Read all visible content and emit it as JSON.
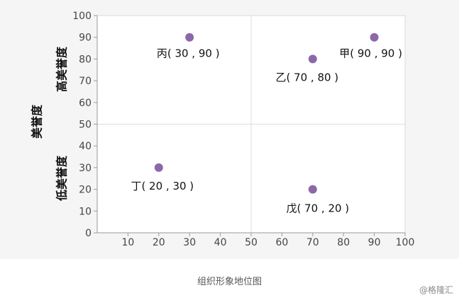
{
  "chart_data": {
    "type": "scatter",
    "title": "",
    "xlabel": "",
    "ylabel": "美誉度",
    "xlim": [
      0,
      100
    ],
    "ylim": [
      0,
      100
    ],
    "x_ticks": [
      "10",
      "20",
      "30",
      "40",
      "50",
      "60",
      "70",
      "80",
      "90",
      "100"
    ],
    "y_ticks": [
      "0",
      "10",
      "20",
      "30",
      "40",
      "50",
      "60",
      "70",
      "80",
      "90",
      "100"
    ],
    "grid": "center lines at x=50 and y=50",
    "points": [
      {
        "label": "甲( 90 , 90 )",
        "x": 90,
        "y": 90
      },
      {
        "label": "乙( 70 , 80 )",
        "x": 70,
        "y": 80
      },
      {
        "label": "丙( 30 , 90 )",
        "x": 30,
        "y": 90
      },
      {
        "label": "丁( 20 , 30 )",
        "x": 20,
        "y": 30
      },
      {
        "label": "戊( 70 , 20 )",
        "x": 70,
        "y": 20
      }
    ],
    "y_region_labels": {
      "high": "高美誉度",
      "low": "低美誉度"
    },
    "point_color": "#8c68a8"
  },
  "caption": "组织形象地位图",
  "watermark": "@格隆汇"
}
